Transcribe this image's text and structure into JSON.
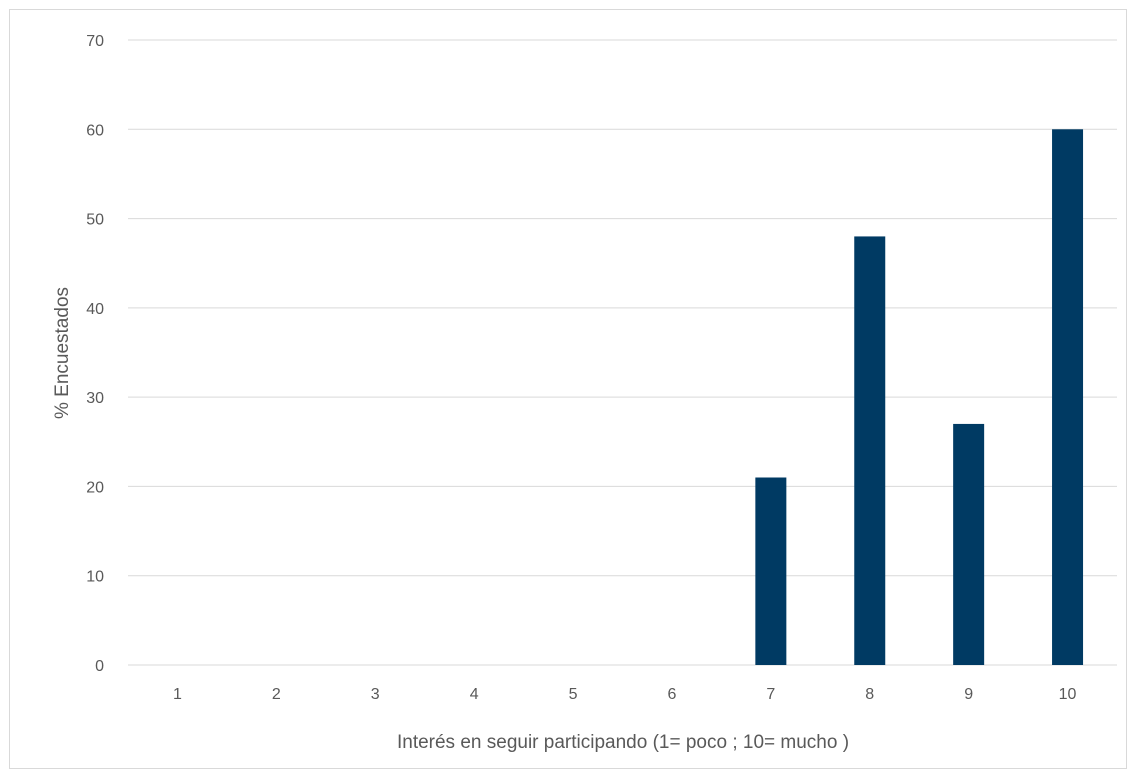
{
  "chart_data": {
    "type": "bar",
    "title": "",
    "xlabel": "Interés en seguir participando (1= poco ; 10= mucho )",
    "ylabel": "% Encuestados",
    "categories": [
      "1",
      "2",
      "3",
      "4",
      "5",
      "6",
      "7",
      "8",
      "9",
      "10"
    ],
    "values": [
      0,
      0,
      0,
      0,
      0,
      0,
      21,
      48,
      27,
      60
    ],
    "ylim": [
      0,
      70
    ],
    "yticks": [
      0,
      10,
      20,
      30,
      40,
      50,
      60,
      70
    ],
    "grid": true,
    "legend": "none",
    "bar_color": "#003a63",
    "grid_color": "#d9d9d9",
    "text_color": "#595959"
  }
}
